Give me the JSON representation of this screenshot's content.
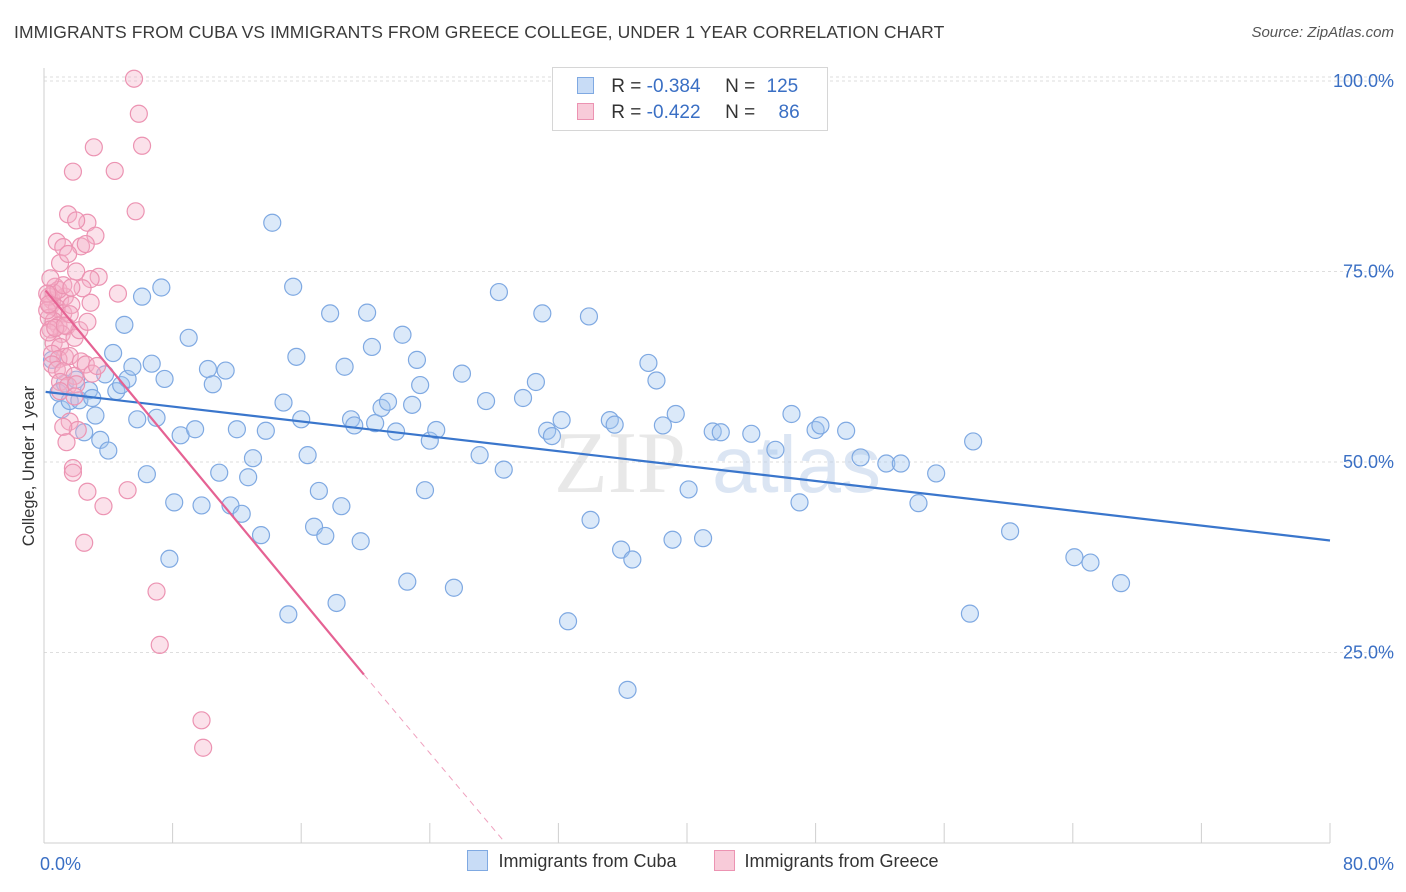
{
  "title": "IMMIGRANTS FROM CUBA VS IMMIGRANTS FROM GREECE COLLEGE, UNDER 1 YEAR CORRELATION CHART",
  "source": "Source: ZipAtlas.com",
  "watermark": {
    "part1": "ZIP",
    "part2": "atlas"
  },
  "stats": [
    {
      "r_label": "R =",
      "r_value": "-0.384",
      "n_label": "N =",
      "n_value": "125",
      "fill": "#c8dcf6",
      "stroke": "#7fa9e2"
    },
    {
      "r_label": "R =",
      "r_value": "-0.422",
      "n_label": "N =",
      "n_value": "86",
      "fill": "#f8cbd9",
      "stroke": "#ec93b2"
    }
  ],
  "legend": [
    {
      "label": "Immigrants from Cuba",
      "fill": "#c8dcf6",
      "stroke": "#7fa9e2"
    },
    {
      "label": "Immigrants from Greece",
      "fill": "#f8cbd9",
      "stroke": "#ec93b2"
    }
  ],
  "chart_data": {
    "type": "scatter",
    "title": "IMMIGRANTS FROM CUBA VS IMMIGRANTS FROM GREECE COLLEGE, UNDER 1 YEAR CORRELATION CHART",
    "xlabel": "",
    "ylabel": "College, Under 1 year",
    "xlim": [
      0,
      80
    ],
    "ylim": [
      0,
      103
    ],
    "x_tick_labels": [
      {
        "value": 0,
        "label": "0.0%"
      },
      {
        "value": 80,
        "label": "80.0%"
      }
    ],
    "y_tick_labels": [
      {
        "value": 25,
        "label": "25.0%"
      },
      {
        "value": 50,
        "label": "50.0%"
      },
      {
        "value": 75,
        "label": "75.0%"
      },
      {
        "value": 100,
        "label": "100.0%"
      }
    ],
    "grid": true,
    "legend_position": "bottom-center",
    "series": [
      {
        "name": "Immigrants from Cuba",
        "color": "#3a76cc",
        "trend": {
          "x1": 0.1,
          "y1": 59.2,
          "x2": 80.0,
          "y2": 39.7
        },
        "points": [
          [
            0.5,
            63.4
          ],
          [
            0.9,
            59.1
          ],
          [
            1.1,
            56.9
          ],
          [
            1.3,
            60.3
          ],
          [
            1.6,
            58.0
          ],
          [
            2.0,
            60.8
          ],
          [
            2.2,
            58.1
          ],
          [
            2.5,
            53.9
          ],
          [
            2.8,
            59.4
          ],
          [
            3.0,
            58.4
          ],
          [
            3.2,
            56.1
          ],
          [
            3.5,
            52.9
          ],
          [
            3.8,
            61.5
          ],
          [
            4.0,
            51.5
          ],
          [
            4.3,
            64.3
          ],
          [
            4.5,
            59.3
          ],
          [
            4.8,
            60.1
          ],
          [
            5.0,
            68.0
          ],
          [
            5.2,
            60.9
          ],
          [
            5.5,
            62.5
          ],
          [
            5.8,
            55.6
          ],
          [
            6.1,
            71.7
          ],
          [
            6.4,
            48.4
          ],
          [
            6.7,
            62.9
          ],
          [
            7.0,
            55.8
          ],
          [
            7.3,
            72.9
          ],
          [
            7.5,
            60.9
          ],
          [
            7.8,
            37.3
          ],
          [
            8.1,
            44.7
          ],
          [
            8.5,
            53.5
          ],
          [
            9.0,
            66.3
          ],
          [
            9.4,
            54.3
          ],
          [
            9.8,
            44.3
          ],
          [
            10.2,
            62.2
          ],
          [
            10.5,
            60.2
          ],
          [
            10.9,
            48.6
          ],
          [
            11.3,
            62.0
          ],
          [
            11.6,
            44.3
          ],
          [
            12.0,
            54.3
          ],
          [
            12.3,
            43.2
          ],
          [
            12.7,
            48.0
          ],
          [
            13.0,
            50.5
          ],
          [
            13.5,
            40.4
          ],
          [
            13.8,
            54.1
          ],
          [
            14.2,
            81.4
          ],
          [
            14.9,
            57.8
          ],
          [
            15.2,
            30.0
          ],
          [
            15.5,
            73.0
          ],
          [
            15.7,
            63.8
          ],
          [
            16.0,
            55.6
          ],
          [
            16.4,
            50.9
          ],
          [
            16.8,
            41.5
          ],
          [
            17.1,
            46.2
          ],
          [
            17.5,
            40.3
          ],
          [
            17.8,
            69.5
          ],
          [
            18.2,
            31.5
          ],
          [
            18.5,
            44.2
          ],
          [
            18.7,
            62.5
          ],
          [
            19.1,
            55.6
          ],
          [
            19.3,
            54.8
          ],
          [
            19.7,
            39.6
          ],
          [
            20.1,
            69.6
          ],
          [
            20.4,
            65.1
          ],
          [
            20.6,
            55.1
          ],
          [
            21.0,
            57.1
          ],
          [
            21.4,
            57.9
          ],
          [
            21.9,
            54.0
          ],
          [
            22.3,
            66.7
          ],
          [
            22.6,
            34.3
          ],
          [
            22.9,
            57.5
          ],
          [
            23.2,
            63.4
          ],
          [
            23.4,
            60.1
          ],
          [
            23.7,
            46.3
          ],
          [
            24.0,
            52.8
          ],
          [
            24.4,
            54.2
          ],
          [
            25.5,
            33.5
          ],
          [
            26.0,
            61.6
          ],
          [
            27.1,
            50.9
          ],
          [
            27.5,
            58.0
          ],
          [
            28.3,
            72.3
          ],
          [
            28.6,
            49.0
          ],
          [
            29.8,
            58.4
          ],
          [
            30.6,
            60.5
          ],
          [
            31.0,
            69.5
          ],
          [
            31.3,
            54.1
          ],
          [
            31.6,
            53.4
          ],
          [
            32.2,
            55.5
          ],
          [
            32.6,
            29.1
          ],
          [
            33.9,
            69.1
          ],
          [
            34.0,
            42.4
          ],
          [
            35.2,
            55.5
          ],
          [
            35.5,
            54.9
          ],
          [
            35.9,
            38.5
          ],
          [
            36.6,
            37.2
          ],
          [
            37.6,
            63.0
          ],
          [
            38.1,
            60.7
          ],
          [
            38.5,
            54.8
          ],
          [
            39.1,
            39.8
          ],
          [
            39.3,
            56.3
          ],
          [
            40.1,
            46.4
          ],
          [
            41.0,
            40.0
          ],
          [
            41.6,
            54.0
          ],
          [
            42.1,
            53.9
          ],
          [
            36.3,
            20.1
          ],
          [
            44.0,
            53.7
          ],
          [
            45.5,
            51.6
          ],
          [
            46.5,
            56.3
          ],
          [
            47.0,
            44.7
          ],
          [
            48.0,
            54.2
          ],
          [
            48.3,
            54.8
          ],
          [
            49.9,
            54.1
          ],
          [
            50.8,
            50.6
          ],
          [
            52.4,
            49.8
          ],
          [
            53.3,
            49.8
          ],
          [
            54.4,
            44.6
          ],
          [
            55.5,
            48.5
          ],
          [
            57.6,
            30.1
          ],
          [
            57.8,
            52.7
          ],
          [
            60.1,
            40.9
          ],
          [
            64.1,
            37.5
          ],
          [
            65.1,
            36.8
          ],
          [
            67.0,
            34.1
          ]
        ]
      },
      {
        "name": "Immigrants from Greece",
        "color": "#e56293",
        "trend": {
          "x1": 0.1,
          "y1": 72.5,
          "x2": 19.9,
          "y2": 22.1,
          "dashed_to_x": 28.7,
          "dashed_to_y": 0
        },
        "points": [
          [
            5.6,
            100.3
          ],
          [
            5.9,
            95.7
          ],
          [
            6.1,
            91.5
          ],
          [
            3.1,
            91.3
          ],
          [
            1.8,
            88.1
          ],
          [
            4.4,
            88.2
          ],
          [
            1.5,
            82.5
          ],
          [
            5.7,
            82.9
          ],
          [
            2.7,
            81.4
          ],
          [
            2.0,
            81.7
          ],
          [
            3.2,
            79.7
          ],
          [
            0.8,
            78.9
          ],
          [
            1.2,
            78.2
          ],
          [
            2.3,
            78.3
          ],
          [
            2.6,
            78.6
          ],
          [
            1.0,
            76.1
          ],
          [
            1.5,
            77.3
          ],
          [
            2.0,
            75.0
          ],
          [
            3.4,
            74.3
          ],
          [
            2.9,
            74.0
          ],
          [
            0.7,
            73.0
          ],
          [
            1.0,
            71.3
          ],
          [
            1.3,
            71.7
          ],
          [
            0.5,
            71.2
          ],
          [
            0.4,
            70.5
          ],
          [
            0.8,
            70.2
          ],
          [
            1.2,
            69.5
          ],
          [
            1.7,
            70.6
          ],
          [
            0.3,
            68.9
          ],
          [
            0.6,
            68.5
          ],
          [
            0.9,
            67.9
          ],
          [
            1.4,
            67.8
          ],
          [
            0.4,
            67.4
          ],
          [
            1.1,
            66.8
          ],
          [
            1.9,
            66.3
          ],
          [
            2.2,
            67.3
          ],
          [
            2.7,
            68.4
          ],
          [
            2.9,
            70.9
          ],
          [
            2.4,
            72.8
          ],
          [
            4.6,
            72.1
          ],
          [
            0.6,
            65.6
          ],
          [
            1.0,
            65.1
          ],
          [
            1.3,
            63.8
          ],
          [
            0.5,
            64.2
          ],
          [
            0.9,
            63.5
          ],
          [
            1.6,
            63.9
          ],
          [
            2.3,
            63.2
          ],
          [
            0.5,
            62.8
          ],
          [
            0.8,
            62.1
          ],
          [
            1.2,
            61.9
          ],
          [
            1.9,
            61.3
          ],
          [
            2.6,
            62.8
          ],
          [
            1.0,
            60.5
          ],
          [
            1.5,
            60.0
          ],
          [
            2.0,
            60.2
          ],
          [
            0.3,
            71.7
          ],
          [
            0.2,
            69.9
          ],
          [
            0.3,
            67.0
          ],
          [
            0.6,
            72.2
          ],
          [
            0.9,
            72.6
          ],
          [
            1.2,
            73.2
          ],
          [
            1.7,
            72.9
          ],
          [
            0.4,
            74.1
          ],
          [
            0.2,
            72.1
          ],
          [
            0.3,
            70.7
          ],
          [
            3.0,
            61.6
          ],
          [
            3.3,
            62.6
          ],
          [
            1.0,
            59.3
          ],
          [
            1.9,
            58.6
          ],
          [
            1.6,
            55.3
          ],
          [
            2.1,
            54.2
          ],
          [
            1.2,
            54.6
          ],
          [
            1.4,
            52.6
          ],
          [
            1.8,
            49.2
          ],
          [
            1.8,
            48.6
          ],
          [
            2.7,
            46.1
          ],
          [
            5.2,
            46.3
          ],
          [
            3.7,
            44.2
          ],
          [
            2.5,
            39.4
          ],
          [
            7.0,
            33.0
          ],
          [
            7.2,
            26.0
          ],
          [
            9.8,
            16.1
          ],
          [
            9.9,
            12.5
          ],
          [
            1.6,
            69.4
          ],
          [
            0.7,
            67.6
          ],
          [
            1.3,
            67.9
          ]
        ]
      }
    ]
  }
}
